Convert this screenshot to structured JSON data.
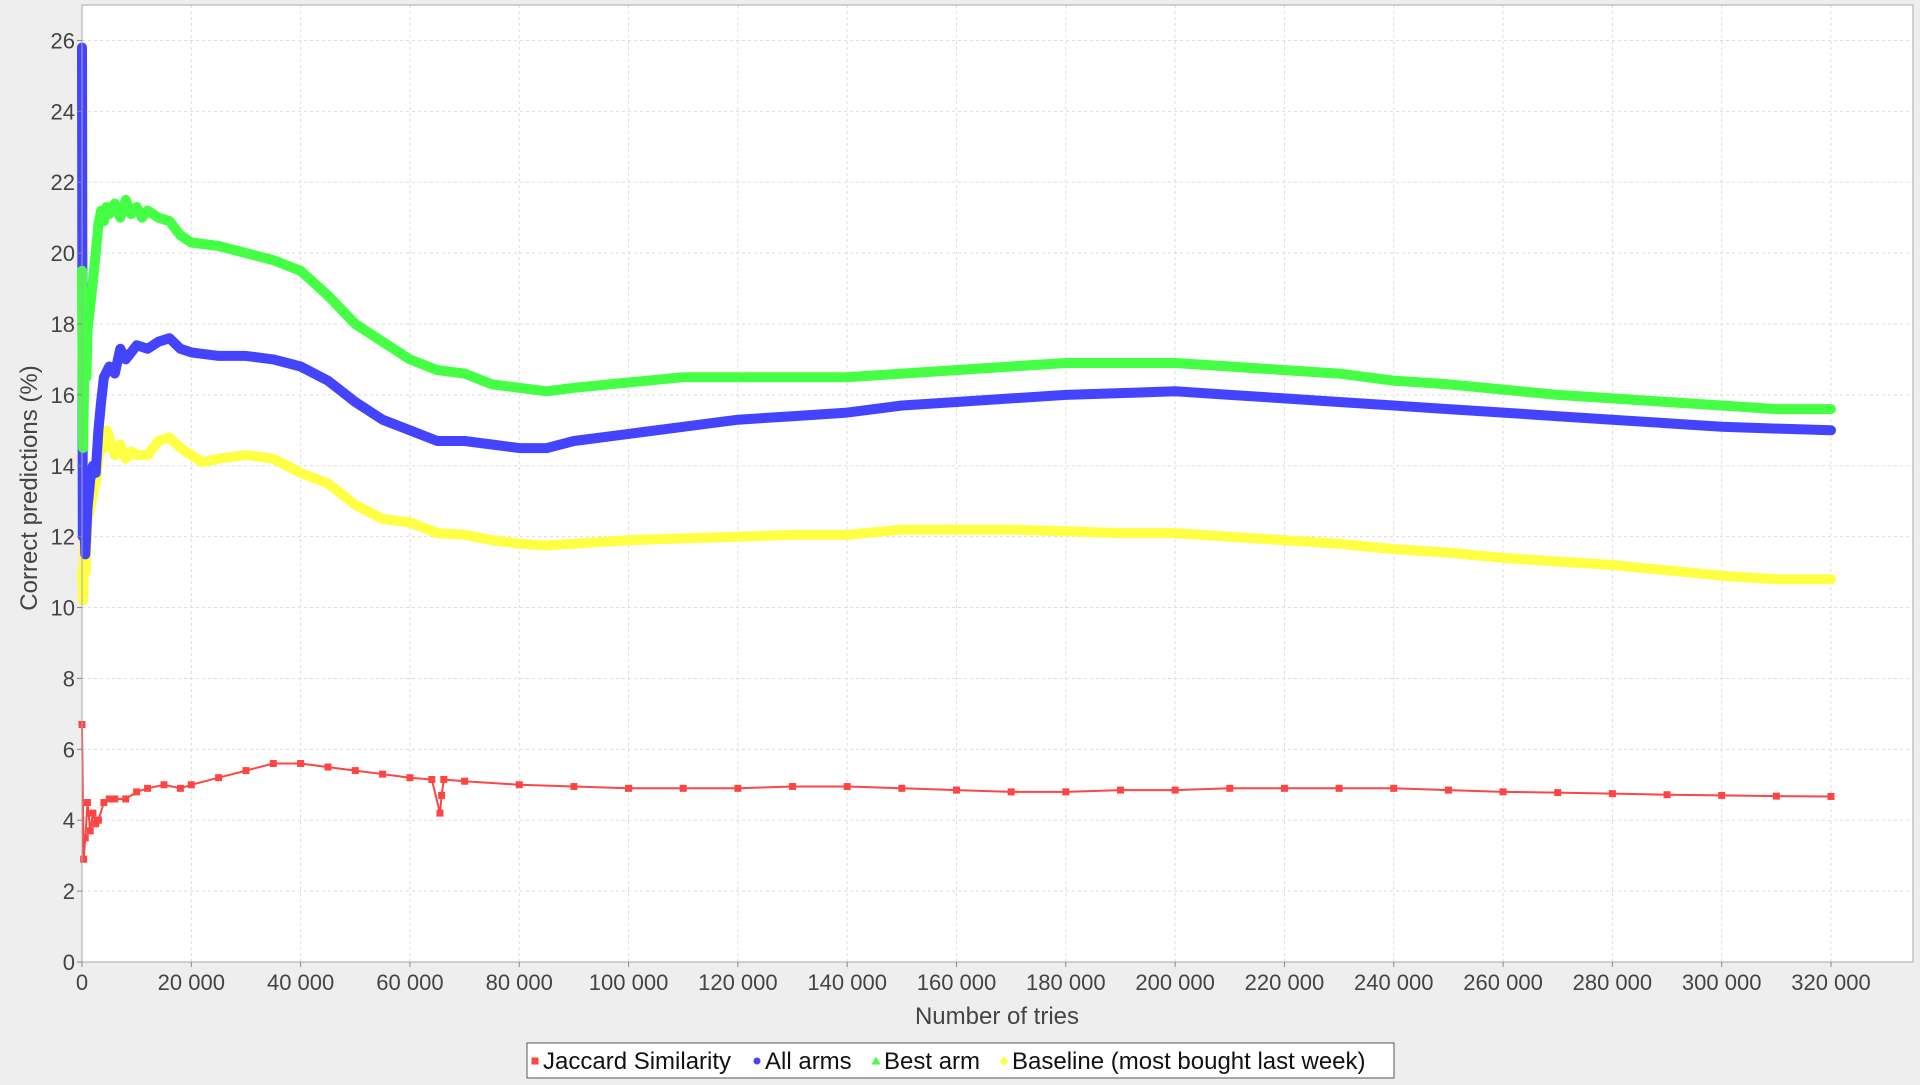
{
  "chart_data": {
    "type": "line",
    "title": "",
    "xlabel": "Number of tries",
    "ylabel": "Correct predictions (%)",
    "xlim": [
      0,
      335000
    ],
    "ylim": [
      0,
      27
    ],
    "x_ticks": [
      0,
      20000,
      40000,
      60000,
      80000,
      100000,
      120000,
      140000,
      160000,
      180000,
      200000,
      220000,
      240000,
      260000,
      280000,
      300000,
      320000
    ],
    "x_tick_labels": [
      "0",
      "20 000",
      "40 000",
      "60 000",
      "80 000",
      "100 000",
      "120 000",
      "140 000",
      "160 000",
      "180 000",
      "200 000",
      "220 000",
      "240 000",
      "260 000",
      "280 000",
      "300 000",
      "320 000"
    ],
    "y_ticks": [
      0,
      2,
      4,
      6,
      8,
      10,
      12,
      14,
      16,
      18,
      20,
      22,
      24,
      26
    ],
    "y_tick_labels": [
      "0",
      "2",
      "4",
      "6",
      "8",
      "10",
      "12",
      "14",
      "16",
      "18",
      "20",
      "22",
      "24",
      "26"
    ],
    "grid": true,
    "legend_position": "bottom-center",
    "series": [
      {
        "name": "Jaccard Similarity",
        "color": "#ff4444",
        "marker": "square",
        "x": [
          0,
          300,
          600,
          1000,
          1500,
          2000,
          2500,
          3000,
          4000,
          5000,
          6000,
          8000,
          10000,
          12000,
          15000,
          18000,
          20000,
          25000,
          30000,
          35000,
          40000,
          45000,
          50000,
          55000,
          60000,
          64000,
          65500,
          65800,
          66200,
          70000,
          80000,
          90000,
          100000,
          110000,
          120000,
          130000,
          140000,
          150000,
          160000,
          170000,
          180000,
          190000,
          200000,
          210000,
          220000,
          230000,
          240000,
          250000,
          260000,
          270000,
          280000,
          290000,
          300000,
          310000,
          320000
        ],
        "y": [
          6.7,
          2.9,
          3.5,
          4.5,
          3.7,
          4.2,
          3.9,
          4.0,
          4.5,
          4.6,
          4.6,
          4.6,
          4.8,
          4.9,
          5.0,
          4.9,
          5.0,
          5.2,
          5.4,
          5.6,
          5.6,
          5.5,
          5.4,
          5.3,
          5.2,
          5.15,
          4.2,
          4.7,
          5.15,
          5.1,
          5.0,
          4.95,
          4.9,
          4.9,
          4.9,
          4.95,
          4.95,
          4.9,
          4.85,
          4.8,
          4.8,
          4.85,
          4.85,
          4.9,
          4.9,
          4.9,
          4.9,
          4.85,
          4.8,
          4.78,
          4.75,
          4.72,
          4.7,
          4.68,
          4.67
        ]
      },
      {
        "name": "All arms",
        "color": "#4444ff",
        "marker": "circle",
        "x": [
          0,
          150,
          300,
          600,
          1000,
          1500,
          2000,
          2500,
          3000,
          3500,
          4000,
          5000,
          6000,
          7000,
          8000,
          9000,
          10000,
          12000,
          14000,
          16000,
          18000,
          20000,
          25000,
          30000,
          35000,
          40000,
          45000,
          50000,
          55000,
          60000,
          65000,
          70000,
          75000,
          80000,
          85000,
          90000,
          100000,
          110000,
          120000,
          130000,
          140000,
          150000,
          160000,
          170000,
          180000,
          190000,
          200000,
          210000,
          220000,
          230000,
          240000,
          250000,
          260000,
          270000,
          280000,
          290000,
          300000,
          310000,
          320000
        ],
        "y": [
          25.8,
          12.0,
          13.2,
          11.5,
          12.8,
          13.6,
          14.0,
          13.8,
          15.0,
          15.8,
          16.5,
          16.8,
          16.6,
          17.3,
          17.0,
          17.2,
          17.4,
          17.3,
          17.5,
          17.6,
          17.3,
          17.2,
          17.1,
          17.1,
          17.0,
          16.8,
          16.4,
          15.8,
          15.3,
          15.0,
          14.7,
          14.7,
          14.6,
          14.5,
          14.5,
          14.7,
          14.9,
          15.1,
          15.3,
          15.4,
          15.5,
          15.7,
          15.8,
          15.9,
          16.0,
          16.05,
          16.1,
          16.0,
          15.9,
          15.8,
          15.7,
          15.6,
          15.5,
          15.4,
          15.3,
          15.2,
          15.1,
          15.05,
          15.0
        ]
      },
      {
        "name": "Best arm",
        "color": "#44ff44",
        "marker": "triangle",
        "x": [
          0,
          200,
          500,
          800,
          1000,
          1500,
          2000,
          2500,
          3000,
          3500,
          4000,
          4500,
          5000,
          6000,
          7000,
          8000,
          9000,
          10000,
          11000,
          12000,
          14000,
          16000,
          18000,
          20000,
          25000,
          30000,
          35000,
          40000,
          45000,
          50000,
          55000,
          60000,
          65000,
          70000,
          75000,
          80000,
          85000,
          90000,
          100000,
          110000,
          120000,
          130000,
          140000,
          150000,
          160000,
          170000,
          180000,
          190000,
          200000,
          210000,
          220000,
          230000,
          240000,
          250000,
          260000,
          270000,
          280000,
          290000,
          300000,
          310000,
          320000
        ],
        "y": [
          19.5,
          14.5,
          17.5,
          16.5,
          17.8,
          18.5,
          19.2,
          20.0,
          20.8,
          21.2,
          20.9,
          21.3,
          21.1,
          21.4,
          21.0,
          21.5,
          21.1,
          21.3,
          21.0,
          21.2,
          21.0,
          20.9,
          20.5,
          20.3,
          20.2,
          20.0,
          19.8,
          19.5,
          18.8,
          18.0,
          17.5,
          17.0,
          16.7,
          16.6,
          16.3,
          16.2,
          16.1,
          16.2,
          16.35,
          16.5,
          16.5,
          16.5,
          16.5,
          16.6,
          16.7,
          16.8,
          16.9,
          16.9,
          16.9,
          16.8,
          16.7,
          16.6,
          16.4,
          16.3,
          16.15,
          16.0,
          15.9,
          15.8,
          15.7,
          15.6,
          15.6
        ]
      },
      {
        "name": "Baseline (most bought last week)",
        "color": "#ffff44",
        "marker": "diamond",
        "x": [
          0,
          200,
          400,
          700,
          1000,
          1500,
          2000,
          2500,
          3000,
          3500,
          4000,
          4500,
          5000,
          6000,
          7000,
          8000,
          9000,
          10000,
          12000,
          14000,
          16000,
          18000,
          20000,
          22000,
          25000,
          30000,
          35000,
          40000,
          45000,
          50000,
          55000,
          60000,
          65000,
          70000,
          75000,
          80000,
          85000,
          90000,
          100000,
          110000,
          120000,
          130000,
          140000,
          150000,
          160000,
          170000,
          180000,
          190000,
          200000,
          210000,
          220000,
          230000,
          240000,
          250000,
          260000,
          270000,
          280000,
          290000,
          300000,
          310000,
          320000
        ],
        "y": [
          11.0,
          10.2,
          12.0,
          11.0,
          12.5,
          12.8,
          13.2,
          13.5,
          14.2,
          14.8,
          14.5,
          15.0,
          14.8,
          14.3,
          14.6,
          14.2,
          14.4,
          14.3,
          14.3,
          14.7,
          14.8,
          14.5,
          14.3,
          14.1,
          14.2,
          14.3,
          14.2,
          13.8,
          13.5,
          12.9,
          12.5,
          12.4,
          12.1,
          12.05,
          11.9,
          11.8,
          11.75,
          11.8,
          11.9,
          11.95,
          12.0,
          12.05,
          12.05,
          12.2,
          12.2,
          12.2,
          12.15,
          12.1,
          12.1,
          12.0,
          11.9,
          11.8,
          11.65,
          11.55,
          11.4,
          11.3,
          11.2,
          11.05,
          10.9,
          10.8,
          10.8
        ]
      }
    ]
  }
}
